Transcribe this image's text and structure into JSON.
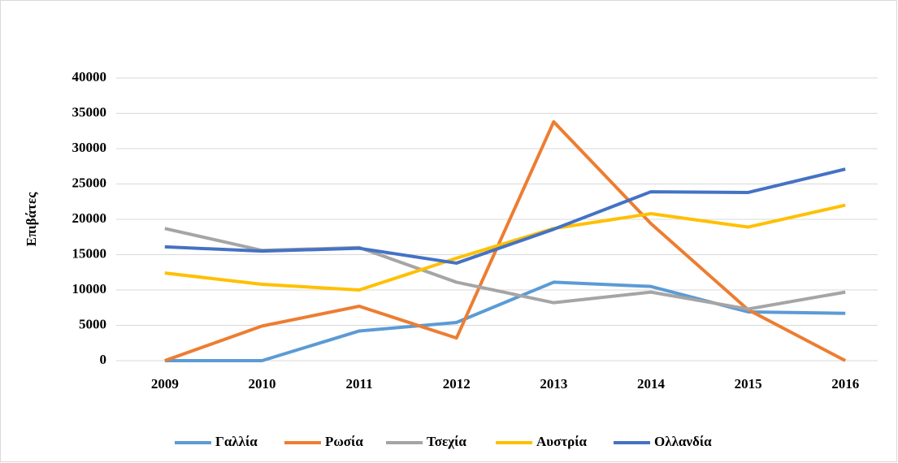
{
  "chart_data": {
    "type": "line",
    "y_label": "Επιβάτες",
    "categories": [
      "2009",
      "2010",
      "2011",
      "2012",
      "2013",
      "2014",
      "2015",
      "2016"
    ],
    "series": [
      {
        "name": "Γαλλία",
        "color": "#5b9bd5",
        "values": [
          0,
          0,
          4200,
          5400,
          11100,
          10500,
          6900,
          6700
        ]
      },
      {
        "name": "Ρωσία",
        "color": "#ed7d31",
        "values": [
          0,
          4900,
          7700,
          3200,
          33800,
          19400,
          7200,
          0
        ]
      },
      {
        "name": "Τσεχία",
        "color": "#a5a5a5",
        "values": [
          18700,
          15600,
          16000,
          11100,
          8200,
          9700,
          7300,
          9700
        ]
      },
      {
        "name": "Αυστρία",
        "color": "#ffc000",
        "values": [
          12400,
          10800,
          10000,
          14500,
          18700,
          20800,
          18900,
          22000
        ]
      },
      {
        "name": "Ολλανδία",
        "color": "#4472c4",
        "values": [
          16100,
          15500,
          15900,
          13800,
          18600,
          23900,
          23800,
          27100
        ]
      }
    ],
    "ylim": [
      0,
      40000
    ],
    "yticks": [
      0,
      5000,
      10000,
      15000,
      20000,
      25000,
      30000,
      35000,
      40000
    ],
    "grid": true,
    "legend": "bottom"
  }
}
